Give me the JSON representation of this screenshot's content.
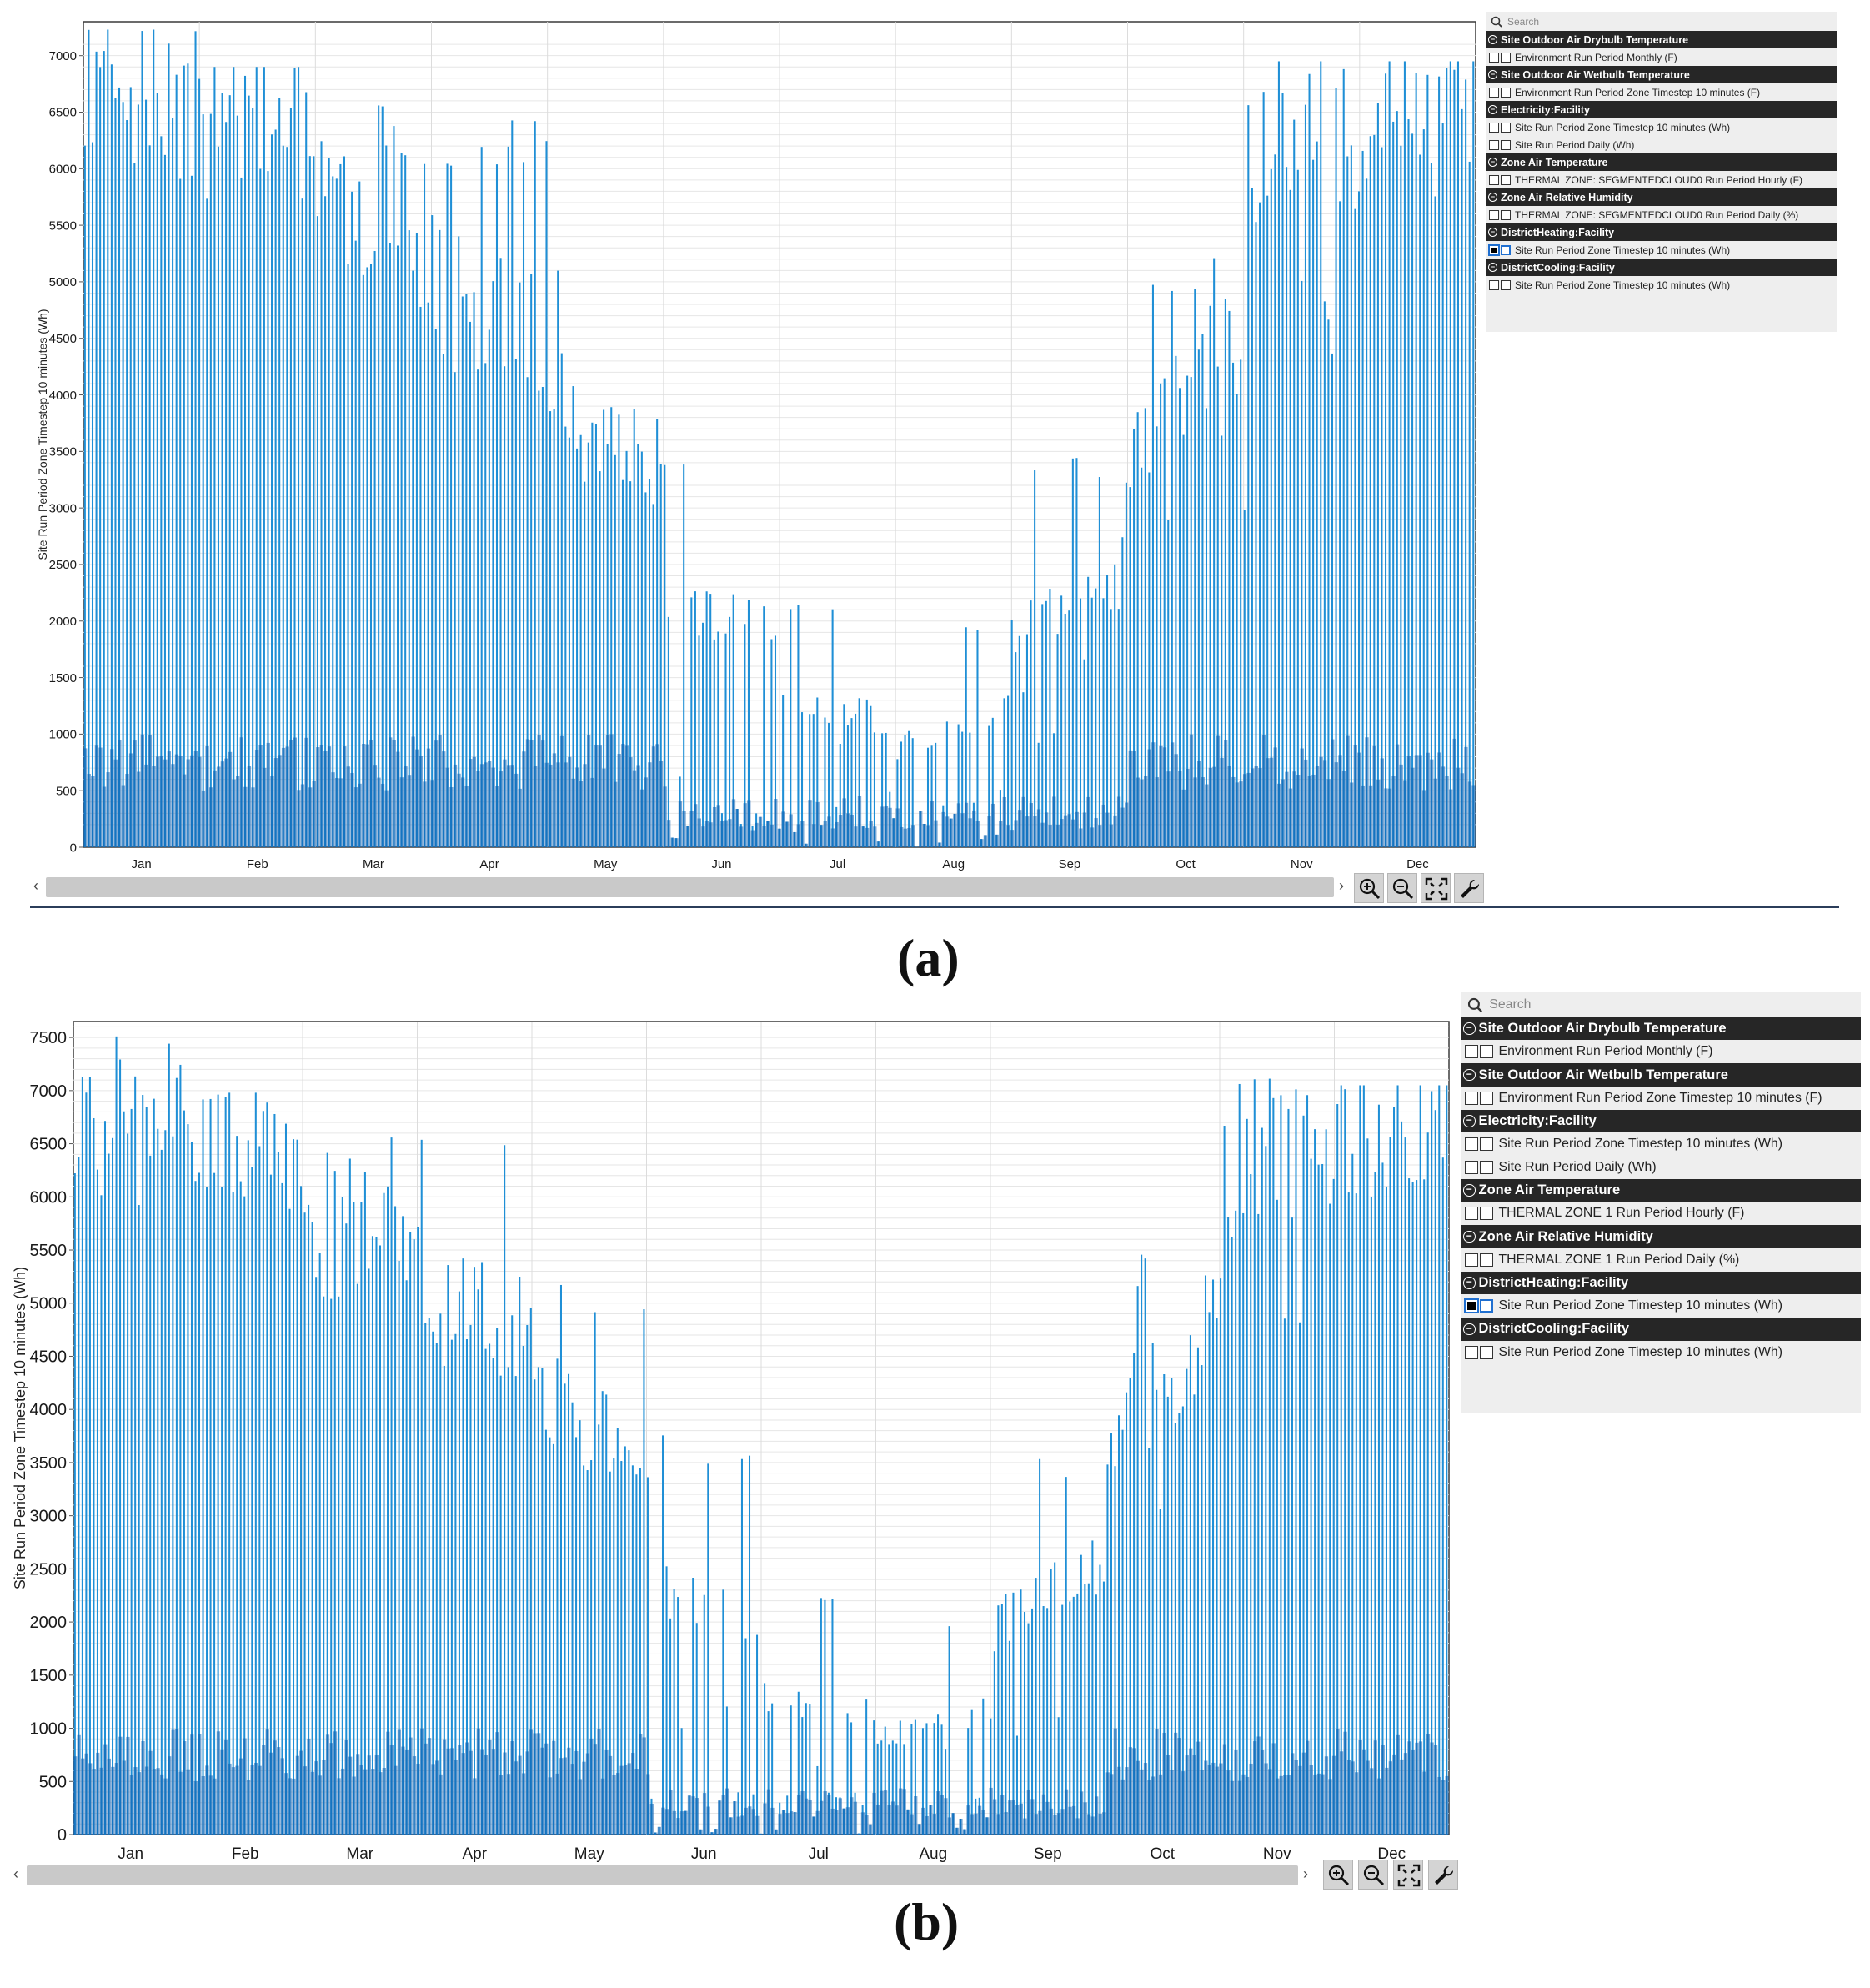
{
  "chart_data": [
    {
      "panel": "(a)",
      "type": "bar",
      "ylabel": "Site Run Period Zone Timestep 10 minutes (Wh)",
      "xlabel": "",
      "title": "",
      "ylim": [
        0,
        7300
      ],
      "yticks": [
        0,
        500,
        1000,
        1500,
        2000,
        2500,
        3000,
        3500,
        4000,
        4500,
        5000,
        5500,
        6000,
        6500,
        7000
      ],
      "months": [
        "Jan",
        "Feb",
        "Mar",
        "Apr",
        "May",
        "Jun",
        "Jul",
        "Aug",
        "Sep",
        "Oct",
        "Nov",
        "Dec"
      ],
      "grid": true,
      "series": [
        {
          "color": "#1f8fd6",
          "monthly_peak_profile": [
            {
              "month": "Jan",
              "typical_peak": 6880,
              "max_peak": 7230,
              "min_peak": 6100
            },
            {
              "month": "Feb",
              "typical_peak": 6700,
              "max_peak": 6900,
              "min_peak": 5900
            },
            {
              "month": "Mar",
              "typical_peak": 5900,
              "max_peak": 6870,
              "min_peak": 5000
            },
            {
              "month": "Apr",
              "typical_peak": 5000,
              "max_peak": 6550,
              "min_peak": 3800
            },
            {
              "month": "May",
              "typical_peak": 4100,
              "max_peak": 5120,
              "min_peak": 3100
            },
            {
              "month": "Jun",
              "typical_peak": 2300,
              "max_peak": 3650,
              "min_peak": 0
            },
            {
              "month": "Jul",
              "typical_peak": 1300,
              "max_peak": 2170,
              "min_peak": 0
            },
            {
              "month": "Aug",
              "typical_peak": 900,
              "max_peak": 2050,
              "min_peak": 0
            },
            {
              "month": "Sep",
              "typical_peak": 1900,
              "max_peak": 3480,
              "min_peak": 700
            },
            {
              "month": "Oct",
              "typical_peak": 3700,
              "max_peak": 5330,
              "min_peak": 1300
            },
            {
              "month": "Nov",
              "typical_peak": 6400,
              "max_peak": 6950,
              "min_peak": 3900
            },
            {
              "month": "Dec",
              "typical_peak": 6700,
              "max_peak": 6950,
              "min_peak": 5700
            }
          ]
        }
      ]
    },
    {
      "panel": "(b)",
      "type": "bar",
      "ylabel": "Site Run Period Zone Timestep 10 minutes (Wh)",
      "xlabel": "",
      "title": "",
      "ylim": [
        0,
        7650
      ],
      "yticks": [
        0,
        500,
        1000,
        1500,
        2000,
        2500,
        3000,
        3500,
        4000,
        4500,
        5000,
        5500,
        6000,
        6500,
        7000,
        7500
      ],
      "months": [
        "Jan",
        "Feb",
        "Mar",
        "Apr",
        "May",
        "Jun",
        "Jul",
        "Aug",
        "Sep",
        "Oct",
        "Nov",
        "Dec"
      ],
      "grid": true,
      "series": [
        {
          "color": "#1f8fd6",
          "monthly_peak_profile": [
            {
              "month": "Jan",
              "typical_peak": 6930,
              "max_peak": 7510,
              "min_peak": 6300
            },
            {
              "month": "Feb",
              "typical_peak": 6850,
              "max_peak": 6980,
              "min_peak": 6100
            },
            {
              "month": "Mar",
              "typical_peak": 6000,
              "max_peak": 6970,
              "min_peak": 5200
            },
            {
              "month": "Apr",
              "typical_peak": 5100,
              "max_peak": 6800,
              "min_peak": 4200
            },
            {
              "month": "May",
              "typical_peak": 4300,
              "max_peak": 5330,
              "min_peak": 3400
            },
            {
              "month": "Jun",
              "typical_peak": 2400,
              "max_peak": 3780,
              "min_peak": 0
            },
            {
              "month": "Jul",
              "typical_peak": 1300,
              "max_peak": 2260,
              "min_peak": 0
            },
            {
              "month": "Aug",
              "typical_peak": 900,
              "max_peak": 2120,
              "min_peak": 0
            },
            {
              "month": "Sep",
              "typical_peak": 2000,
              "max_peak": 3600,
              "min_peak": 700
            },
            {
              "month": "Oct",
              "typical_peak": 3900,
              "max_peak": 5550,
              "min_peak": 1400
            },
            {
              "month": "Nov",
              "typical_peak": 6600,
              "max_peak": 7190,
              "min_peak": 4000
            },
            {
              "month": "Dec",
              "typical_peak": 6850,
              "max_peak": 7050,
              "min_peak": 5900
            }
          ]
        }
      ]
    }
  ],
  "sidebars": [
    {
      "search_placeholder": "Search",
      "groups": [
        {
          "title": "Site Outdoor Air Drybulb Temperature",
          "items": [
            {
              "label": "Environment Run Period Monthly (F)",
              "checked": false
            }
          ]
        },
        {
          "title": "Site Outdoor Air Wetbulb Temperature",
          "items": [
            {
              "label": "Environment Run Period Zone Timestep 10 minutes (F)",
              "checked": false
            }
          ]
        },
        {
          "title": "Electricity:Facility",
          "items": [
            {
              "label": "Site Run Period Zone Timestep 10 minutes (Wh)",
              "checked": false
            },
            {
              "label": "Site Run Period Daily (Wh)",
              "checked": false
            }
          ]
        },
        {
          "title": "Zone Air Temperature",
          "items": [
            {
              "label": "THERMAL ZONE: SEGMENTEDCLOUD0 Run Period Hourly (F)",
              "checked": false
            }
          ]
        },
        {
          "title": "Zone Air Relative Humidity",
          "items": [
            {
              "label": "THERMAL ZONE: SEGMENTEDCLOUD0 Run Period Daily (%)",
              "checked": false
            }
          ]
        },
        {
          "title": "DistrictHeating:Facility",
          "items": [
            {
              "label": "Site Run Period Zone Timestep 10 minutes (Wh)",
              "checked": true
            }
          ]
        },
        {
          "title": "DistrictCooling:Facility",
          "items": [
            {
              "label": "Site Run Period Zone Timestep 10 minutes (Wh)",
              "checked": false
            }
          ]
        }
      ]
    },
    {
      "search_placeholder": "Search",
      "groups": [
        {
          "title": "Site Outdoor Air Drybulb Temperature",
          "items": [
            {
              "label": "Environment Run Period Monthly (F)",
              "checked": false
            }
          ]
        },
        {
          "title": "Site Outdoor Air Wetbulb Temperature",
          "items": [
            {
              "label": "Environment Run Period Zone Timestep 10 minutes (F)",
              "checked": false
            }
          ]
        },
        {
          "title": "Electricity:Facility",
          "items": [
            {
              "label": "Site Run Period Zone Timestep 10 minutes (Wh)",
              "checked": false
            },
            {
              "label": "Site Run Period Daily (Wh)",
              "checked": false
            }
          ]
        },
        {
          "title": "Zone Air Temperature",
          "items": [
            {
              "label": "THERMAL ZONE 1 Run Period Hourly (F)",
              "checked": false
            }
          ]
        },
        {
          "title": "Zone Air Relative Humidity",
          "items": [
            {
              "label": "THERMAL ZONE 1 Run Period Daily (%)",
              "checked": false
            }
          ]
        },
        {
          "title": "DistrictHeating:Facility",
          "items": [
            {
              "label": "Site Run Period Zone Timestep 10 minutes (Wh)",
              "checked": true
            }
          ]
        },
        {
          "title": "DistrictCooling:Facility",
          "items": [
            {
              "label": "Site Run Period Zone Timestep 10 minutes (Wh)",
              "checked": false
            }
          ]
        }
      ]
    }
  ],
  "toolbar": {
    "zoom_in_icon": "zoom-in-icon",
    "zoom_out_icon": "zoom-out-icon",
    "fit_icon": "fit-to-window-icon",
    "settings_icon": "wrench-icon",
    "scroll_left": "‹",
    "scroll_right": "›"
  },
  "panel_labels": [
    "(a)",
    "(b)"
  ],
  "colors": {
    "bar": "#1f8fd6",
    "bar_base": "#0b5fb0",
    "header_bg": "#262626",
    "sidebar_bg": "#eeeeee"
  }
}
